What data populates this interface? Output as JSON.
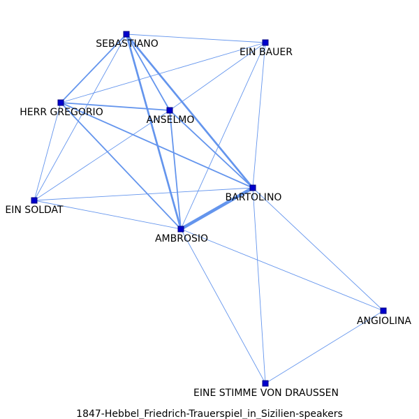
{
  "caption": "1847-Hebbel_Friedrich-Trauerspiel_in_Sizilien-speakers",
  "colors": {
    "edge": "#6495ED",
    "node_fill": "#0000CD",
    "node_stroke": "#000080",
    "text": "#000000",
    "background": "#ffffff"
  },
  "nodes": [
    {
      "id": "sebastiano",
      "label": "SEBASTIANO"
    },
    {
      "id": "ein_bauer",
      "label": "EIN BAUER"
    },
    {
      "id": "herr_gregorio",
      "label": "HERR GREGORIO"
    },
    {
      "id": "anselmo",
      "label": "ANSELMO"
    },
    {
      "id": "bartolino",
      "label": "BARTOLINO"
    },
    {
      "id": "ein_soldat",
      "label": "EIN SOLDAT"
    },
    {
      "id": "ambrosio",
      "label": "AMBROSIO"
    },
    {
      "id": "angiolina",
      "label": "ANGIOLINA"
    },
    {
      "id": "eine_stimme",
      "label": "EINE STIMME VON DRAUSSEN"
    }
  ],
  "edges": [
    {
      "source": "sebastiano",
      "target": "ein_bauer",
      "weight": 1
    },
    {
      "source": "sebastiano",
      "target": "herr_gregorio",
      "weight": 2
    },
    {
      "source": "sebastiano",
      "target": "anselmo",
      "weight": 2
    },
    {
      "source": "sebastiano",
      "target": "bartolino",
      "weight": 3
    },
    {
      "source": "sebastiano",
      "target": "ambrosio",
      "weight": 3
    },
    {
      "source": "sebastiano",
      "target": "ein_soldat",
      "weight": 1
    },
    {
      "source": "ein_bauer",
      "target": "herr_gregorio",
      "weight": 1
    },
    {
      "source": "ein_bauer",
      "target": "anselmo",
      "weight": 1
    },
    {
      "source": "ein_bauer",
      "target": "bartolino",
      "weight": 1
    },
    {
      "source": "ein_bauer",
      "target": "ambrosio",
      "weight": 1
    },
    {
      "source": "herr_gregorio",
      "target": "anselmo",
      "weight": 2
    },
    {
      "source": "herr_gregorio",
      "target": "bartolino",
      "weight": 2
    },
    {
      "source": "herr_gregorio",
      "target": "ambrosio",
      "weight": 2
    },
    {
      "source": "herr_gregorio",
      "target": "ein_soldat",
      "weight": 1
    },
    {
      "source": "anselmo",
      "target": "bartolino",
      "weight": 2
    },
    {
      "source": "anselmo",
      "target": "ambrosio",
      "weight": 2
    },
    {
      "source": "anselmo",
      "target": "ein_soldat",
      "weight": 1
    },
    {
      "source": "bartolino",
      "target": "ambrosio",
      "weight": 5
    },
    {
      "source": "bartolino",
      "target": "ein_soldat",
      "weight": 1
    },
    {
      "source": "bartolino",
      "target": "angiolina",
      "weight": 1
    },
    {
      "source": "bartolino",
      "target": "eine_stimme",
      "weight": 1
    },
    {
      "source": "ambrosio",
      "target": "ein_soldat",
      "weight": 1
    },
    {
      "source": "ambrosio",
      "target": "angiolina",
      "weight": 1
    },
    {
      "source": "ambrosio",
      "target": "eine_stimme",
      "weight": 1
    },
    {
      "source": "angiolina",
      "target": "eine_stimme",
      "weight": 1
    }
  ]
}
